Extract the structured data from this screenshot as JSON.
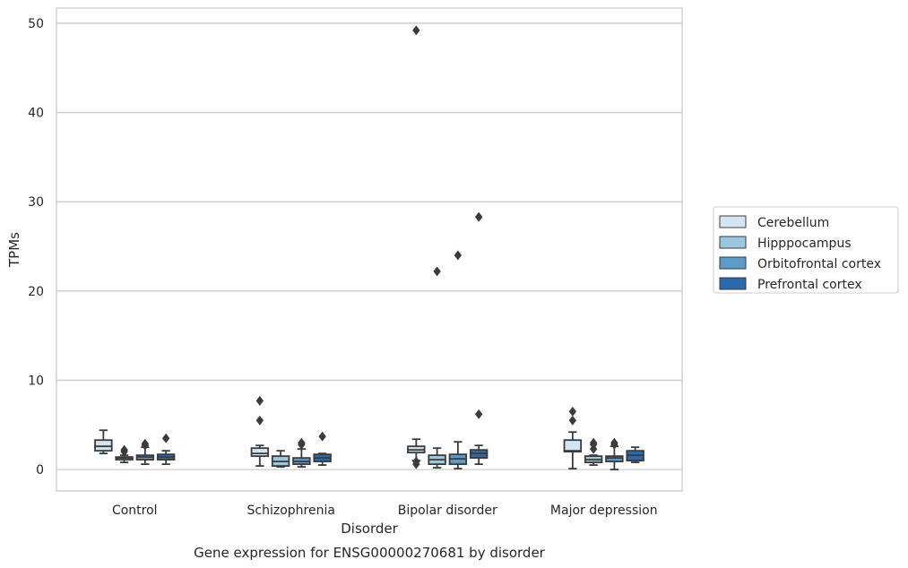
{
  "chart_data": {
    "type": "box",
    "title": "",
    "caption": "Gene expression for ENSG00000270681 by disorder",
    "xlabel": "Disorder",
    "ylabel": "TPMs",
    "ylim": [
      -2.4,
      51.7
    ],
    "yticks": [
      0,
      10,
      20,
      30,
      40,
      50
    ],
    "grid": "horizontal",
    "legend_position": "right",
    "categories": [
      "Control",
      "Schizophrenia",
      "Bipolar disorder",
      "Major depression"
    ],
    "series": [
      {
        "name": "Cerebellum",
        "color": "#d3e4f3",
        "boxes": [
          {
            "whisker_low": 1.8,
            "q1": 2.1,
            "median": 2.6,
            "q3": 3.3,
            "whisker_high": 4.4,
            "outliers": []
          },
          {
            "whisker_low": 0.4,
            "q1": 1.5,
            "median": 1.8,
            "q3": 2.4,
            "whisker_high": 2.7,
            "outliers": [
              5.5,
              7.7
            ]
          },
          {
            "whisker_low": 1.0,
            "q1": 1.9,
            "median": 2.2,
            "q3": 2.6,
            "whisker_high": 3.4,
            "outliers": [
              0.6,
              0.9,
              49.2
            ]
          },
          {
            "whisker_low": 0.1,
            "q1": 2.0,
            "median": 2.1,
            "q3": 3.3,
            "whisker_high": 4.2,
            "outliers": [
              5.5,
              6.5
            ]
          }
        ]
      },
      {
        "name": "Hipppocampus",
        "color": "#9ac8e0",
        "boxes": [
          {
            "whisker_low": 0.8,
            "q1": 1.1,
            "median": 1.3,
            "q3": 1.4,
            "whisker_high": 1.6,
            "outliers": [
              2.0,
              2.2
            ]
          },
          {
            "whisker_low": 0.3,
            "q1": 0.4,
            "median": 0.9,
            "q3": 1.5,
            "whisker_high": 2.1,
            "outliers": []
          },
          {
            "whisker_low": 0.2,
            "q1": 0.6,
            "median": 1.1,
            "q3": 1.6,
            "whisker_high": 2.4,
            "outliers": [
              22.2
            ]
          },
          {
            "whisker_low": 0.5,
            "q1": 0.8,
            "median": 1.1,
            "q3": 1.5,
            "whisker_high": 1.6,
            "outliers": [
              2.3,
              2.8,
              3.0
            ]
          }
        ]
      },
      {
        "name": "Orbitofrontal cortex",
        "color": "#5b9bc9",
        "boxes": [
          {
            "whisker_low": 0.6,
            "q1": 1.1,
            "median": 1.4,
            "q3": 1.6,
            "whisker_high": 2.5,
            "outliers": [
              2.7,
              2.9
            ]
          },
          {
            "whisker_low": 0.3,
            "q1": 0.6,
            "median": 0.9,
            "q3": 1.3,
            "whisker_high": 2.3,
            "outliers": [
              2.8,
              3.0
            ]
          },
          {
            "whisker_low": 0.1,
            "q1": 0.6,
            "median": 1.2,
            "q3": 1.7,
            "whisker_high": 3.1,
            "outliers": [
              24.0
            ]
          },
          {
            "whisker_low": 0.0,
            "q1": 0.9,
            "median": 1.3,
            "q3": 1.5,
            "whisker_high": 2.6,
            "outliers": [
              2.8,
              3.0
            ]
          }
        ]
      },
      {
        "name": "Prefrontal cortex",
        "color": "#2a6aac",
        "boxes": [
          {
            "whisker_low": 0.6,
            "q1": 1.1,
            "median": 1.4,
            "q3": 1.7,
            "whisker_high": 2.1,
            "outliers": [
              3.5
            ]
          },
          {
            "whisker_low": 0.5,
            "q1": 0.9,
            "median": 1.3,
            "q3": 1.7,
            "whisker_high": 1.8,
            "outliers": [
              3.7
            ]
          },
          {
            "whisker_low": 0.6,
            "q1": 1.3,
            "median": 1.8,
            "q3": 2.2,
            "whisker_high": 2.7,
            "outliers": [
              6.2,
              28.3
            ]
          },
          {
            "whisker_low": 0.8,
            "q1": 1.0,
            "median": 1.6,
            "q3": 2.1,
            "whisker_high": 2.5,
            "outliers": []
          }
        ]
      }
    ]
  }
}
